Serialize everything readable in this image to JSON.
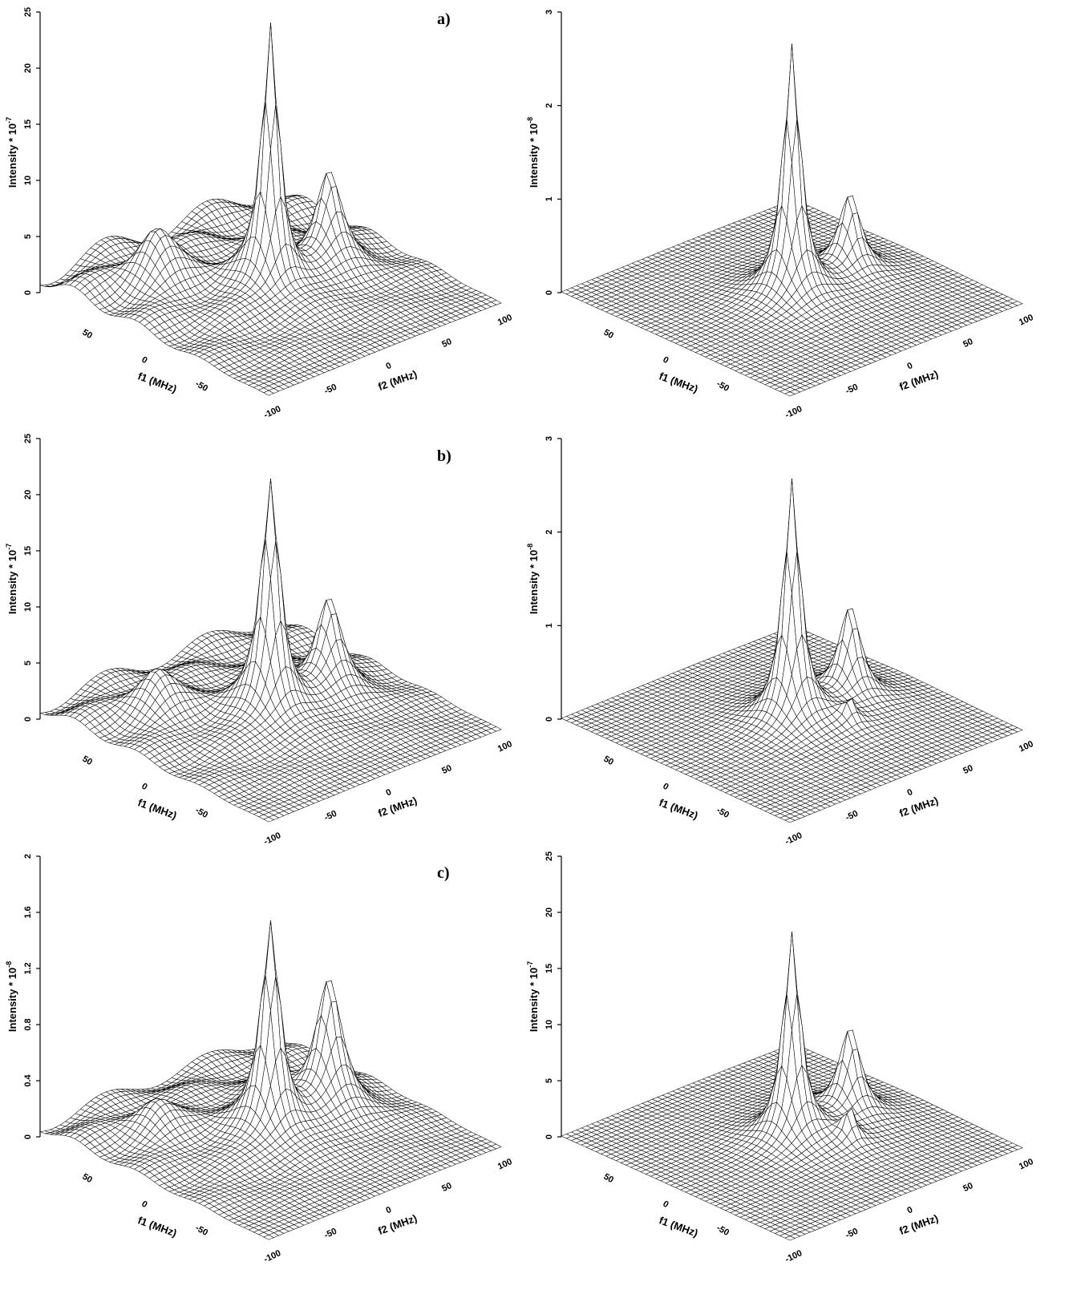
{
  "chart_data": [
    {
      "type": "surface",
      "panel_label": "a)",
      "zlabel": "Intensity * 10",
      "zexp": "-7",
      "zticks": [
        "0",
        "5",
        "10",
        "15",
        "20",
        "25"
      ],
      "zlim": [
        0,
        25
      ],
      "xlabel": "f1 (MHz)",
      "ylabel": "f2 (MHz)",
      "xticks": [
        "50",
        "0",
        "-50"
      ],
      "yticks": [
        "-100",
        "-50",
        "0",
        "50",
        "100"
      ],
      "peaks": [
        {
          "f1": 0,
          "f2": 0,
          "height": 23.5,
          "width": 8
        },
        {
          "f1": 0,
          "f2": 50,
          "height": 8.5,
          "width": 12
        },
        {
          "f1": 50,
          "f2": -50,
          "height": 4.5,
          "width": 20
        }
      ],
      "background": 2.0
    },
    {
      "type": "surface",
      "panel_label": "",
      "zlabel": "Intensity * 10",
      "zexp": "-8",
      "zticks": [
        "0",
        "1",
        "2",
        "3"
      ],
      "zlim": [
        0,
        3
      ],
      "xlabel": "f1 (MHz)",
      "ylabel": "f2 (MHz)",
      "xticks": [
        "50",
        "0",
        "-50"
      ],
      "yticks": [
        "-100",
        "-50",
        "0",
        "50",
        "100"
      ],
      "peaks": [
        {
          "f1": 0,
          "f2": 0,
          "height": 2.7,
          "width": 8
        },
        {
          "f1": 0,
          "f2": 50,
          "height": 0.85,
          "width": 10
        }
      ],
      "background": 0.0
    },
    {
      "type": "surface",
      "panel_label": "b)",
      "zlabel": "Intensity * 10",
      "zexp": "-7",
      "zticks": [
        "0",
        "5",
        "10",
        "15",
        "20",
        "25"
      ],
      "zlim": [
        0,
        25
      ],
      "xlabel": "f1 (MHz)",
      "ylabel": "f2 (MHz)",
      "xticks": [
        "50",
        "0",
        "-50"
      ],
      "yticks": [
        "-100",
        "-50",
        "0",
        "50",
        "100"
      ],
      "peaks": [
        {
          "f1": 0,
          "f2": 0,
          "height": 21,
          "width": 9
        },
        {
          "f1": 0,
          "f2": 50,
          "height": 8.5,
          "width": 12
        },
        {
          "f1": 50,
          "f2": -50,
          "height": 3.5,
          "width": 20
        },
        {
          "f1": 30,
          "f2": 30,
          "height": 2.0,
          "width": 8
        }
      ],
      "background": 1.5
    },
    {
      "type": "surface",
      "panel_label": "",
      "zlabel": "Intensity * 10",
      "zexp": "-8",
      "zticks": [
        "0",
        "1",
        "2",
        "3"
      ],
      "zlim": [
        0,
        3
      ],
      "xlabel": "f1 (MHz)",
      "ylabel": "f2 (MHz)",
      "xticks": [
        "50",
        "0",
        "-50"
      ],
      "yticks": [
        "-100",
        "-50",
        "0",
        "50",
        "100"
      ],
      "peaks": [
        {
          "f1": 0,
          "f2": 0,
          "height": 2.6,
          "width": 8
        },
        {
          "f1": 0,
          "f2": 50,
          "height": 1.0,
          "width": 10
        },
        {
          "f1": 30,
          "f2": 30,
          "height": 0.25,
          "width": 6
        },
        {
          "f1": -30,
          "f2": 20,
          "height": 0.25,
          "width": 6
        }
      ],
      "background": 0.0
    },
    {
      "type": "surface",
      "panel_label": "c)",
      "zlabel": "Intensity * 10",
      "zexp": "-8",
      "zticks": [
        "0",
        "0.4",
        "0.8",
        "1.2",
        "1.6",
        "2"
      ],
      "zlim": [
        0,
        2
      ],
      "xlabel": "f1 (MHz)",
      "ylabel": "f2 (MHz)",
      "xticks": [
        "50",
        "0",
        "-50"
      ],
      "yticks": [
        "-100",
        "-50",
        "0",
        "50",
        "100"
      ],
      "peaks": [
        {
          "f1": 0,
          "f2": 0,
          "height": 1.5,
          "width": 9
        },
        {
          "f1": 0,
          "f2": 50,
          "height": 0.95,
          "width": 12
        },
        {
          "f1": 30,
          "f2": 30,
          "height": 0.35,
          "width": 9
        },
        {
          "f1": 50,
          "f2": -50,
          "height": 0.2,
          "width": 20
        }
      ],
      "background": 0.1
    },
    {
      "type": "surface",
      "panel_label": "",
      "zlabel": "Intensity * 10",
      "zexp": "-7",
      "zticks": [
        "0",
        "5",
        "10",
        "15",
        "20",
        "25"
      ],
      "zlim": [
        0,
        25
      ],
      "xlabel": "f1 (MHz)",
      "ylabel": "f2 (MHz)",
      "xticks": [
        "50",
        "0",
        "-50"
      ],
      "yticks": [
        "-100",
        "-50",
        "0",
        "50",
        "100"
      ],
      "peaks": [
        {
          "f1": 0,
          "f2": 0,
          "height": 18.5,
          "width": 8
        },
        {
          "f1": 0,
          "f2": 50,
          "height": 8,
          "width": 10
        },
        {
          "f1": 30,
          "f2": 30,
          "height": 3.0,
          "width": 6
        },
        {
          "f1": -30,
          "f2": 20,
          "height": 3.0,
          "width": 6
        }
      ],
      "background": 0.0
    }
  ]
}
